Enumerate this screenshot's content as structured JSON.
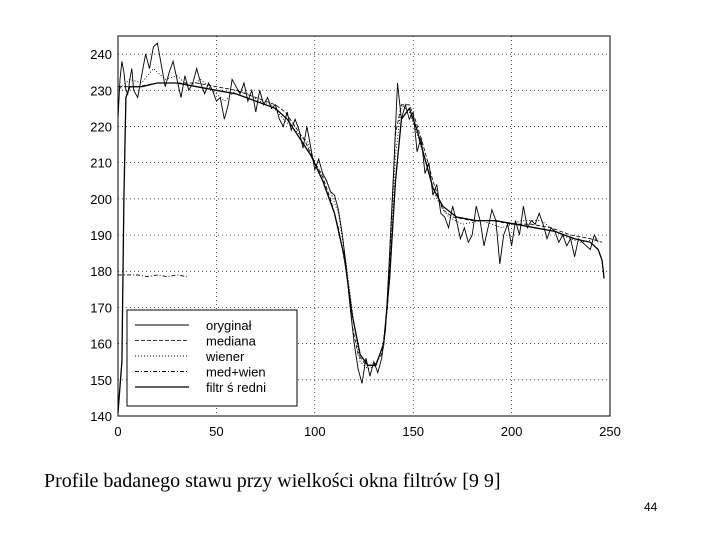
{
  "page": {
    "caption": "Profile badanego stawu przy wielkości okna filtrów [9 9]",
    "page_number": "44"
  },
  "chart_data": {
    "type": "line",
    "title": "",
    "xlabel": "",
    "ylabel": "",
    "xlim": [
      0,
      250
    ],
    "ylim": [
      140,
      245
    ],
    "x_ticks": [
      0,
      50,
      100,
      150,
      200,
      250
    ],
    "y_ticks": [
      140,
      150,
      160,
      170,
      180,
      190,
      200,
      210,
      220,
      230,
      240
    ],
    "grid": true,
    "grid_style": "dotted",
    "legend_position": "lower-left",
    "series": [
      {
        "name": "oryginał",
        "style": "solid-thin",
        "color": "#000000",
        "points": [
          [
            0,
            222
          ],
          [
            1,
            233
          ],
          [
            2,
            238
          ],
          [
            3,
            235
          ],
          [
            4,
            230
          ],
          [
            5,
            229
          ],
          [
            6,
            233
          ],
          [
            7,
            236
          ],
          [
            8,
            230
          ],
          [
            10,
            228
          ],
          [
            12,
            234
          ],
          [
            14,
            240
          ],
          [
            16,
            236
          ],
          [
            18,
            242
          ],
          [
            20,
            243
          ],
          [
            22,
            237
          ],
          [
            24,
            231
          ],
          [
            26,
            235
          ],
          [
            28,
            238
          ],
          [
            30,
            233
          ],
          [
            32,
            228
          ],
          [
            34,
            234
          ],
          [
            36,
            230
          ],
          [
            38,
            232
          ],
          [
            40,
            236
          ],
          [
            42,
            232
          ],
          [
            44,
            229
          ],
          [
            46,
            232
          ],
          [
            48,
            230
          ],
          [
            50,
            227
          ],
          [
            52,
            228
          ],
          [
            54,
            222
          ],
          [
            56,
            226
          ],
          [
            58,
            233
          ],
          [
            60,
            231
          ],
          [
            62,
            229
          ],
          [
            64,
            232
          ],
          [
            66,
            227
          ],
          [
            68,
            230
          ],
          [
            70,
            224
          ],
          [
            72,
            230
          ],
          [
            74,
            226
          ],
          [
            76,
            228
          ],
          [
            78,
            225
          ],
          [
            80,
            226
          ],
          [
            82,
            222
          ],
          [
            84,
            220
          ],
          [
            86,
            224
          ],
          [
            88,
            219
          ],
          [
            90,
            222
          ],
          [
            92,
            219
          ],
          [
            94,
            214
          ],
          [
            96,
            220
          ],
          [
            98,
            214
          ],
          [
            100,
            208
          ],
          [
            102,
            211
          ],
          [
            104,
            207
          ],
          [
            106,
            205
          ],
          [
            108,
            202
          ],
          [
            110,
            201
          ],
          [
            112,
            197
          ],
          [
            114,
            190
          ],
          [
            116,
            181
          ],
          [
            118,
            170
          ],
          [
            120,
            160
          ],
          [
            122,
            153
          ],
          [
            124,
            149
          ],
          [
            126,
            156
          ],
          [
            128,
            151
          ],
          [
            130,
            155
          ],
          [
            132,
            152
          ],
          [
            134,
            156
          ],
          [
            136,
            164
          ],
          [
            138,
            185
          ],
          [
            140,
            207
          ],
          [
            142,
            232
          ],
          [
            144,
            222
          ],
          [
            146,
            226
          ],
          [
            148,
            222
          ],
          [
            150,
            224
          ],
          [
            152,
            213
          ],
          [
            154,
            217
          ],
          [
            156,
            207
          ],
          [
            158,
            210
          ],
          [
            160,
            201
          ],
          [
            162,
            204
          ],
          [
            164,
            196
          ],
          [
            166,
            195
          ],
          [
            168,
            192
          ],
          [
            170,
            198
          ],
          [
            172,
            194
          ],
          [
            174,
            189
          ],
          [
            176,
            192
          ],
          [
            178,
            188
          ],
          [
            180,
            190
          ],
          [
            182,
            198
          ],
          [
            184,
            194
          ],
          [
            186,
            187
          ],
          [
            188,
            192
          ],
          [
            190,
            197
          ],
          [
            192,
            194
          ],
          [
            194,
            182
          ],
          [
            196,
            190
          ],
          [
            198,
            193
          ],
          [
            200,
            187
          ],
          [
            202,
            194
          ],
          [
            204,
            190
          ],
          [
            206,
            198
          ],
          [
            208,
            192
          ],
          [
            210,
            194
          ],
          [
            212,
            193
          ],
          [
            214,
            196
          ],
          [
            216,
            193
          ],
          [
            218,
            189
          ],
          [
            220,
            192
          ],
          [
            222,
            191
          ],
          [
            224,
            188
          ],
          [
            226,
            190
          ],
          [
            228,
            187
          ],
          [
            230,
            189
          ],
          [
            232,
            184
          ],
          [
            234,
            189
          ],
          [
            236,
            188
          ],
          [
            238,
            187
          ],
          [
            240,
            186
          ],
          [
            242,
            190
          ],
          [
            244,
            188
          ]
        ]
      },
      {
        "name": "mediana",
        "style": "dashed",
        "color": "#000000",
        "points": [
          [
            0,
            231
          ],
          [
            10,
            231
          ],
          [
            20,
            232
          ],
          [
            30,
            232
          ],
          [
            40,
            232
          ],
          [
            50,
            231
          ],
          [
            60,
            230
          ],
          [
            70,
            228
          ],
          [
            80,
            226
          ],
          [
            85,
            224
          ],
          [
            90,
            220
          ],
          [
            95,
            216
          ],
          [
            100,
            210
          ],
          [
            104,
            206
          ],
          [
            108,
            200
          ],
          [
            112,
            192
          ],
          [
            116,
            180
          ],
          [
            119,
            165
          ],
          [
            122,
            157
          ],
          [
            126,
            154
          ],
          [
            130,
            154
          ],
          [
            134,
            157
          ],
          [
            137,
            170
          ],
          [
            139,
            195
          ],
          [
            141,
            218
          ],
          [
            144,
            226
          ],
          [
            148,
            226
          ],
          [
            151,
            222
          ],
          [
            155,
            215
          ],
          [
            160,
            205
          ],
          [
            165,
            197
          ],
          [
            170,
            195
          ],
          [
            180,
            194
          ],
          [
            190,
            194
          ],
          [
            200,
            193
          ],
          [
            210,
            193
          ],
          [
            220,
            192
          ],
          [
            230,
            190
          ],
          [
            240,
            189
          ],
          [
            246,
            188
          ]
        ]
      },
      {
        "name": "wiener",
        "style": "dotted",
        "color": "#000000",
        "points": [
          [
            0,
            230
          ],
          [
            6,
            233
          ],
          [
            12,
            232
          ],
          [
            18,
            236
          ],
          [
            24,
            233
          ],
          [
            30,
            234
          ],
          [
            36,
            231
          ],
          [
            42,
            233
          ],
          [
            48,
            230
          ],
          [
            54,
            227
          ],
          [
            60,
            230
          ],
          [
            66,
            229
          ],
          [
            72,
            227
          ],
          [
            78,
            226
          ],
          [
            84,
            222
          ],
          [
            90,
            219
          ],
          [
            96,
            216
          ],
          [
            100,
            210
          ],
          [
            106,
            205
          ],
          [
            112,
            196
          ],
          [
            116,
            182
          ],
          [
            120,
            165
          ],
          [
            123,
            155
          ],
          [
            127,
            153
          ],
          [
            131,
            154
          ],
          [
            135,
            159
          ],
          [
            138,
            180
          ],
          [
            141,
            212
          ],
          [
            144,
            226
          ],
          [
            148,
            224
          ],
          [
            152,
            218
          ],
          [
            157,
            209
          ],
          [
            162,
            200
          ],
          [
            168,
            195
          ],
          [
            175,
            193
          ],
          [
            185,
            194
          ],
          [
            195,
            192
          ],
          [
            205,
            194
          ],
          [
            215,
            194
          ],
          [
            225,
            190
          ],
          [
            235,
            188
          ],
          [
            244,
            189
          ]
        ]
      },
      {
        "name": "med+wien",
        "style": "dash-dot",
        "color": "#000000",
        "points": [
          [
            0,
            179
          ],
          [
            5,
            179
          ],
          [
            10,
            179
          ],
          [
            15,
            178.5
          ],
          [
            20,
            179
          ],
          [
            25,
            178.5
          ],
          [
            30,
            179
          ],
          [
            35,
            178.5
          ]
        ]
      },
      {
        "name": "filtr średni",
        "style": "solid",
        "color": "#000000",
        "points": [
          [
            0,
            141
          ],
          [
            2,
            155
          ],
          [
            3,
            200
          ],
          [
            4,
            228
          ],
          [
            6,
            231
          ],
          [
            12,
            231
          ],
          [
            20,
            232
          ],
          [
            30,
            232
          ],
          [
            40,
            231
          ],
          [
            50,
            230
          ],
          [
            60,
            229
          ],
          [
            70,
            227
          ],
          [
            80,
            225
          ],
          [
            86,
            222
          ],
          [
            92,
            217
          ],
          [
            98,
            212
          ],
          [
            104,
            205
          ],
          [
            110,
            196
          ],
          [
            115,
            184
          ],
          [
            119,
            168
          ],
          [
            123,
            157
          ],
          [
            127,
            154
          ],
          [
            131,
            154
          ],
          [
            135,
            160
          ],
          [
            138,
            178
          ],
          [
            141,
            205
          ],
          [
            144,
            222
          ],
          [
            148,
            225
          ],
          [
            152,
            219
          ],
          [
            156,
            211
          ],
          [
            160,
            203
          ],
          [
            165,
            198
          ],
          [
            172,
            195
          ],
          [
            182,
            194
          ],
          [
            192,
            194
          ],
          [
            202,
            193
          ],
          [
            212,
            192
          ],
          [
            222,
            191
          ],
          [
            232,
            189
          ],
          [
            240,
            188
          ],
          [
            244,
            186
          ],
          [
            246,
            183
          ],
          [
            247,
            178
          ]
        ]
      }
    ]
  },
  "legend": {
    "entries": [
      "oryginał",
      "mediana",
      "wiener",
      "med+wien",
      "filtr ś redni"
    ]
  }
}
